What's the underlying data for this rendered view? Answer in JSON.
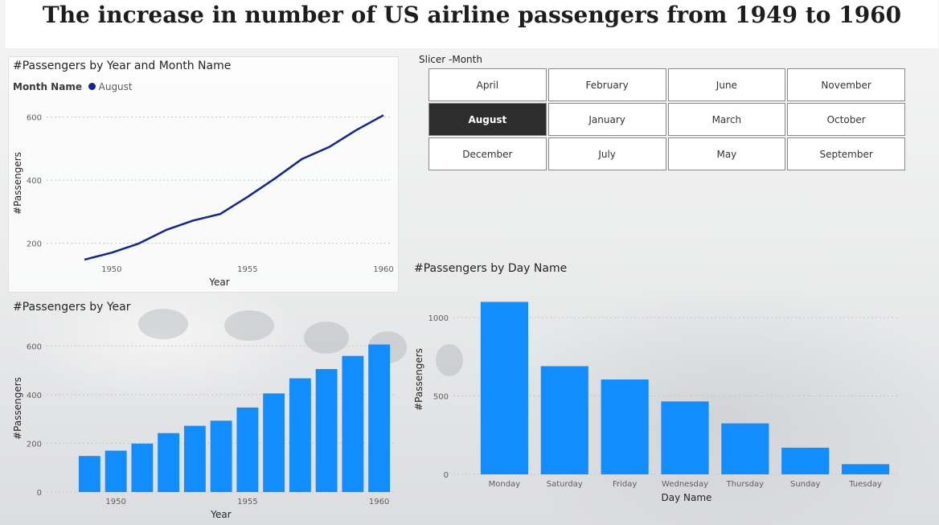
{
  "page": {
    "title": "The increase in number of US airline passengers from 1949 to 1960"
  },
  "line_chart_panel": {
    "title": "#Passengers by Year and Month Name",
    "legend_title": "Month Name",
    "legend_item": "August",
    "legend_color": "#12239e"
  },
  "slicer": {
    "label": "Slicer -Month",
    "options": [
      "April",
      "February",
      "June",
      "November",
      "August",
      "January",
      "March",
      "October",
      "December",
      "July",
      "May",
      "September"
    ],
    "selected": "August"
  },
  "bar_year_panel": {
    "title": "#Passengers by Year"
  },
  "bar_day_panel": {
    "title": "#Passengers by Day Name"
  },
  "colors": {
    "bar": "#118dff",
    "line": "#12239e",
    "selected_slicer": "#2d2d2d"
  },
  "chart_data": [
    {
      "type": "line",
      "title": "#Passengers by Year and Month Name",
      "xlabel": "Year",
      "ylabel": "#Passengers",
      "x": [
        1949,
        1950,
        1951,
        1952,
        1953,
        1954,
        1955,
        1956,
        1957,
        1958,
        1959,
        1960
      ],
      "series": [
        {
          "name": "August",
          "values": [
            148,
            170,
            199,
            242,
            272,
            293,
            347,
            405,
            467,
            505,
            559,
            606
          ]
        }
      ],
      "xticks": [
        "1950",
        "1955",
        "1960"
      ],
      "yticks": [
        "200",
        "400",
        "600"
      ],
      "ylim": [
        130,
        640
      ],
      "grid": true,
      "legend_position": "top-left"
    },
    {
      "type": "bar",
      "title": "#Passengers by Year",
      "xlabel": "Year",
      "ylabel": "#Passengers",
      "categories": [
        1949,
        1950,
        1951,
        1952,
        1953,
        1954,
        1955,
        1956,
        1957,
        1958,
        1959,
        1960
      ],
      "values": [
        148,
        170,
        199,
        242,
        272,
        293,
        347,
        405,
        467,
        505,
        559,
        606
      ],
      "xticks": [
        "1950",
        "1955",
        "1960"
      ],
      "yticks": [
        "0",
        "200",
        "400",
        "600"
      ],
      "ylim": [
        0,
        700
      ],
      "grid": true
    },
    {
      "type": "bar",
      "title": "#Passengers by Day Name",
      "xlabel": "Day Name",
      "ylabel": "#Passengers",
      "categories": [
        "Monday",
        "Saturday",
        "Friday",
        "Wednesday",
        "Thursday",
        "Sunday",
        "Tuesday"
      ],
      "values": [
        1100,
        690,
        605,
        465,
        325,
        170,
        65
      ],
      "yticks": [
        "0",
        "500",
        "1000"
      ],
      "ylim": [
        0,
        1200
      ],
      "grid": true
    }
  ]
}
